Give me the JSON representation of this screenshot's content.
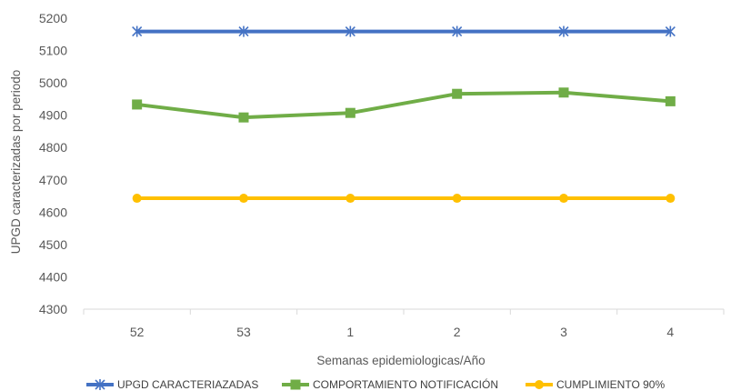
{
  "chart_data": {
    "type": "line",
    "title": "",
    "xlabel": "Semanas epidemiologicas/Año",
    "ylabel": "UPGD caracterizadas por periodo",
    "categories": [
      "52",
      "53",
      "1",
      "2",
      "3",
      "4"
    ],
    "ylim": [
      4300,
      5200
    ],
    "yticks": [
      4300,
      4400,
      4500,
      4600,
      4700,
      4800,
      4900,
      5000,
      5100,
      5200
    ],
    "grid": false,
    "legend_position": "bottom",
    "series": [
      {
        "name": "UPGD CARACTERIAZADAS",
        "values": [
          5159,
          5159,
          5159,
          5159,
          5159,
          5159
        ],
        "color": "#4472C4",
        "marker": "asterisk"
      },
      {
        "name": "COMPORTAMIENTO NOTIFICACIÓN",
        "values": [
          4933,
          4893,
          4907,
          4966,
          4970,
          4943
        ],
        "color": "#70AD47",
        "marker": "square"
      },
      {
        "name": "CUMPLIMIENTO 90%",
        "values": [
          4643,
          4643,
          4643,
          4643,
          4643,
          4643
        ],
        "color": "#FFC000",
        "marker": "circle"
      }
    ]
  }
}
